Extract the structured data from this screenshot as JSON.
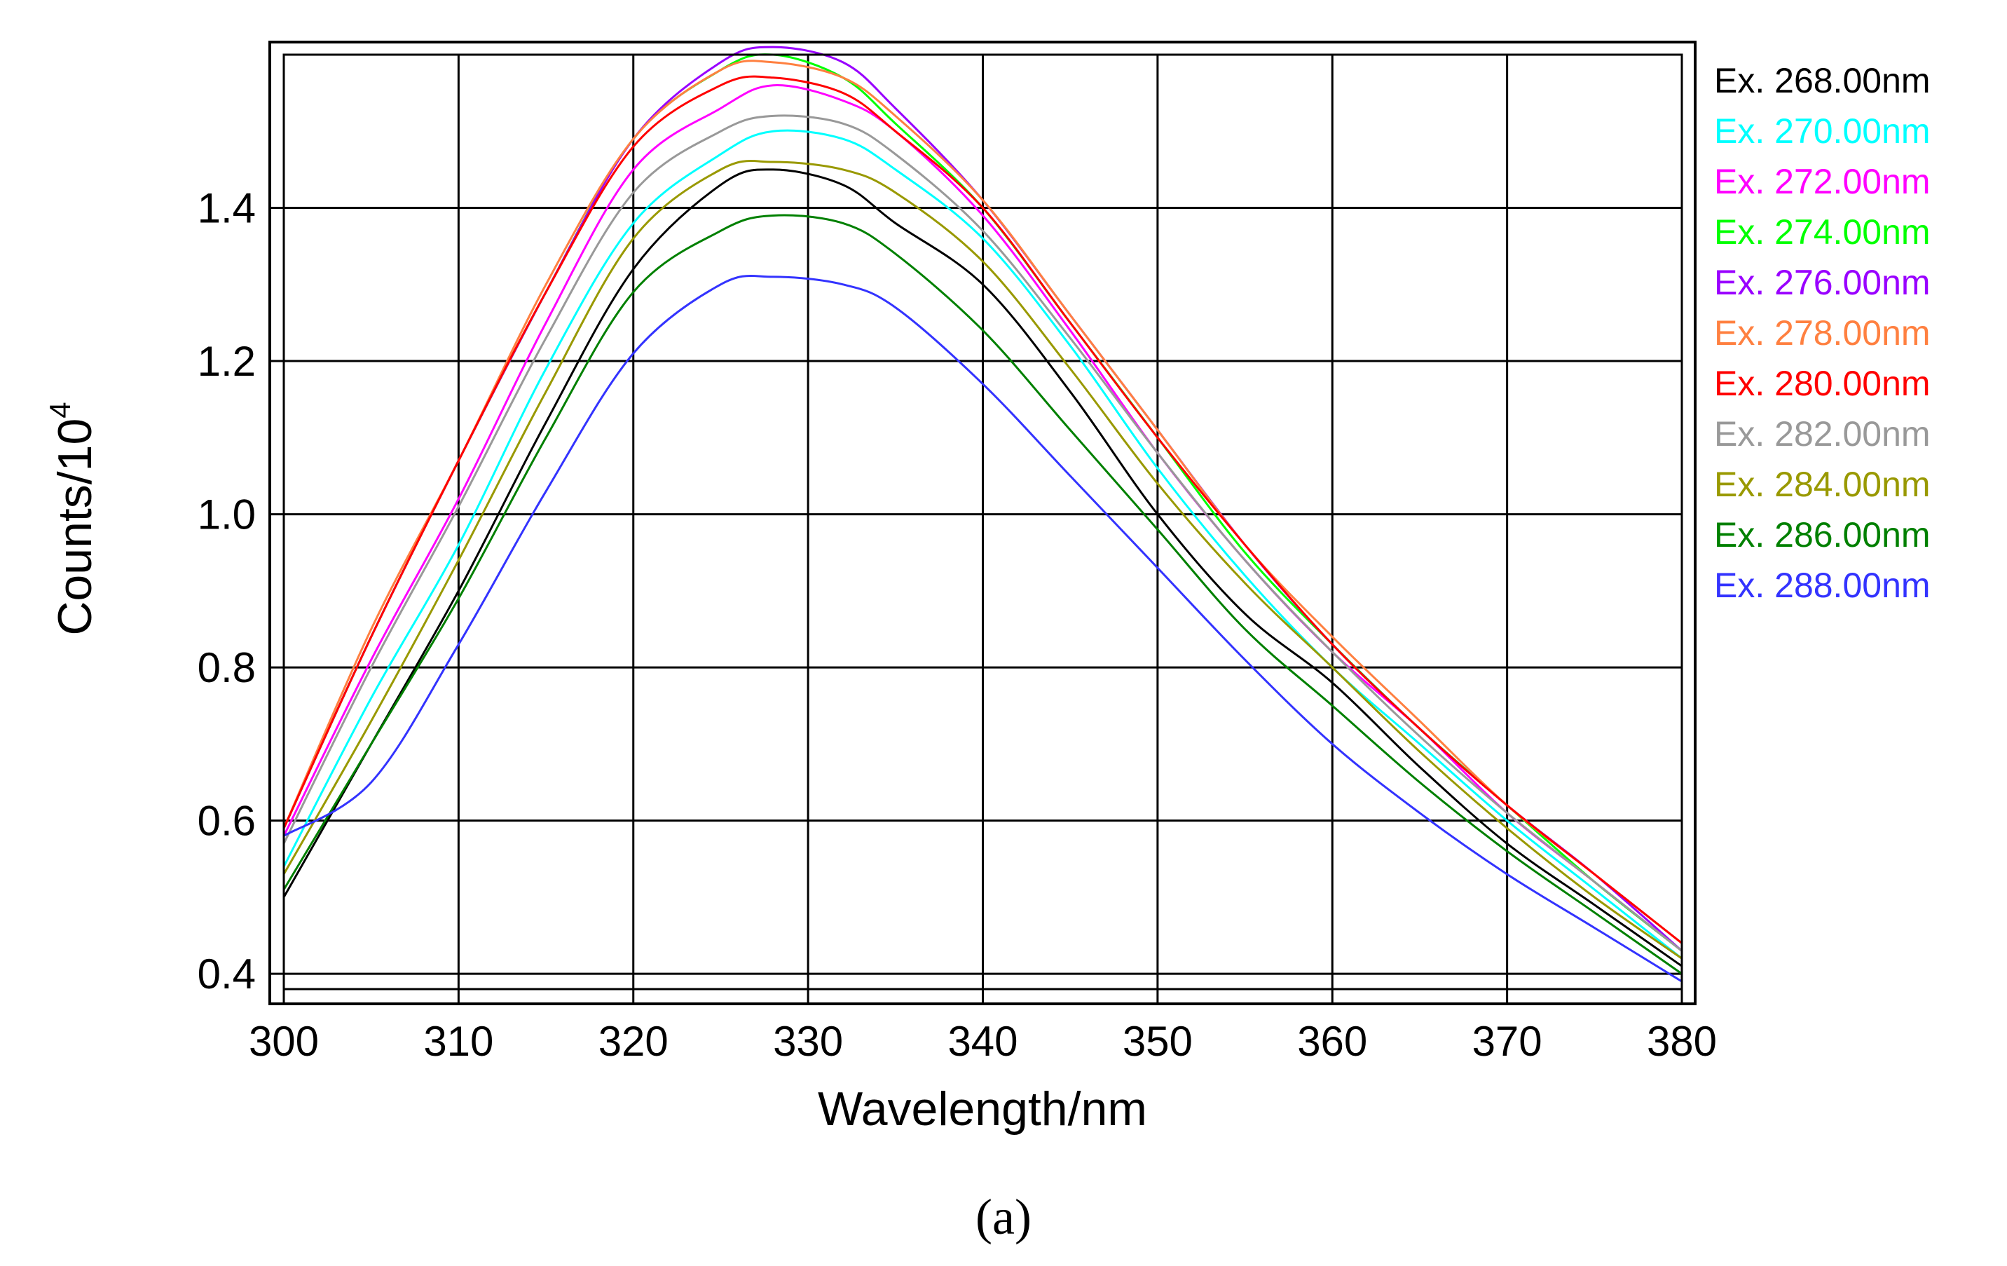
{
  "chart_data": {
    "type": "line",
    "title": "",
    "xlabel": "Wavelength/nm",
    "ylabel_base": "Counts/10",
    "ylabel_exp": "4",
    "xlim": [
      300,
      380
    ],
    "ylim": [
      0.38,
      1.6
    ],
    "xticks": [
      300,
      310,
      320,
      330,
      340,
      350,
      360,
      370,
      380
    ],
    "yticks": [
      0.4,
      0.6,
      0.8,
      1.0,
      1.2,
      1.4
    ],
    "ytick_labels": [
      "0.4",
      "0.6",
      "0.8",
      "1.0",
      "1.2",
      "1.4"
    ],
    "grid": true,
    "legend_position": "right",
    "caption": "(a)",
    "x": [
      300,
      305,
      310,
      315,
      320,
      325,
      328,
      332,
      335,
      340,
      345,
      350,
      355,
      360,
      365,
      370,
      375,
      380
    ],
    "series": [
      {
        "name": "Ex. 268.00nm",
        "color": "#000000",
        "values": [
          0.5,
          0.7,
          0.9,
          1.12,
          1.32,
          1.43,
          1.45,
          1.43,
          1.38,
          1.3,
          1.16,
          1.0,
          0.87,
          0.78,
          0.67,
          0.57,
          0.49,
          0.41
        ]
      },
      {
        "name": "Ex. 270.00nm",
        "color": "#00ffff",
        "values": [
          0.54,
          0.76,
          0.96,
          1.19,
          1.38,
          1.47,
          1.5,
          1.49,
          1.45,
          1.36,
          1.22,
          1.06,
          0.92,
          0.8,
          0.7,
          0.6,
          0.51,
          0.42
        ]
      },
      {
        "name": "Ex. 272.00nm",
        "color": "#ff00ff",
        "values": [
          0.58,
          0.81,
          1.02,
          1.25,
          1.45,
          1.53,
          1.56,
          1.54,
          1.5,
          1.39,
          1.24,
          1.08,
          0.94,
          0.82,
          0.72,
          0.61,
          0.52,
          0.43
        ]
      },
      {
        "name": "Ex. 274.00nm",
        "color": "#00ff00",
        "values": [
          0.59,
          0.84,
          1.07,
          1.29,
          1.49,
          1.58,
          1.6,
          1.57,
          1.51,
          1.4,
          1.25,
          1.1,
          0.95,
          0.83,
          0.72,
          0.62,
          0.52,
          0.43
        ]
      },
      {
        "name": "Ex. 276.00nm",
        "color": "#9900ff",
        "values": [
          0.59,
          0.84,
          1.07,
          1.29,
          1.49,
          1.59,
          1.61,
          1.59,
          1.53,
          1.41,
          1.26,
          1.11,
          0.96,
          0.83,
          0.72,
          0.62,
          0.53,
          0.43
        ]
      },
      {
        "name": "Ex. 278.00nm",
        "color": "#ff8040",
        "values": [
          0.59,
          0.85,
          1.07,
          1.3,
          1.49,
          1.58,
          1.59,
          1.57,
          1.52,
          1.41,
          1.26,
          1.11,
          0.96,
          0.84,
          0.73,
          0.62,
          0.53,
          0.44
        ]
      },
      {
        "name": "Ex. 280.00nm",
        "color": "#ff0000",
        "values": [
          0.59,
          0.84,
          1.07,
          1.29,
          1.48,
          1.56,
          1.57,
          1.55,
          1.5,
          1.4,
          1.25,
          1.1,
          0.96,
          0.83,
          0.72,
          0.62,
          0.53,
          0.44
        ]
      },
      {
        "name": "Ex. 282.00nm",
        "color": "#999999",
        "values": [
          0.57,
          0.8,
          1.01,
          1.23,
          1.42,
          1.5,
          1.52,
          1.51,
          1.47,
          1.37,
          1.23,
          1.08,
          0.94,
          0.82,
          0.71,
          0.61,
          0.52,
          0.43
        ]
      },
      {
        "name": "Ex. 284.00nm",
        "color": "#999900",
        "values": [
          0.53,
          0.73,
          0.94,
          1.16,
          1.36,
          1.45,
          1.46,
          1.45,
          1.42,
          1.33,
          1.19,
          1.04,
          0.91,
          0.8,
          0.69,
          0.59,
          0.5,
          0.42
        ]
      },
      {
        "name": "Ex. 286.00nm",
        "color": "#008000",
        "values": [
          0.51,
          0.7,
          0.89,
          1.1,
          1.29,
          1.37,
          1.39,
          1.38,
          1.34,
          1.24,
          1.11,
          0.98,
          0.85,
          0.75,
          0.65,
          0.56,
          0.48,
          0.4
        ]
      },
      {
        "name": "Ex. 288.00nm",
        "color": "#3333ff",
        "values": [
          0.58,
          0.65,
          0.83,
          1.03,
          1.21,
          1.3,
          1.31,
          1.3,
          1.27,
          1.17,
          1.05,
          0.93,
          0.81,
          0.7,
          0.61,
          0.53,
          0.46,
          0.39
        ]
      }
    ]
  }
}
